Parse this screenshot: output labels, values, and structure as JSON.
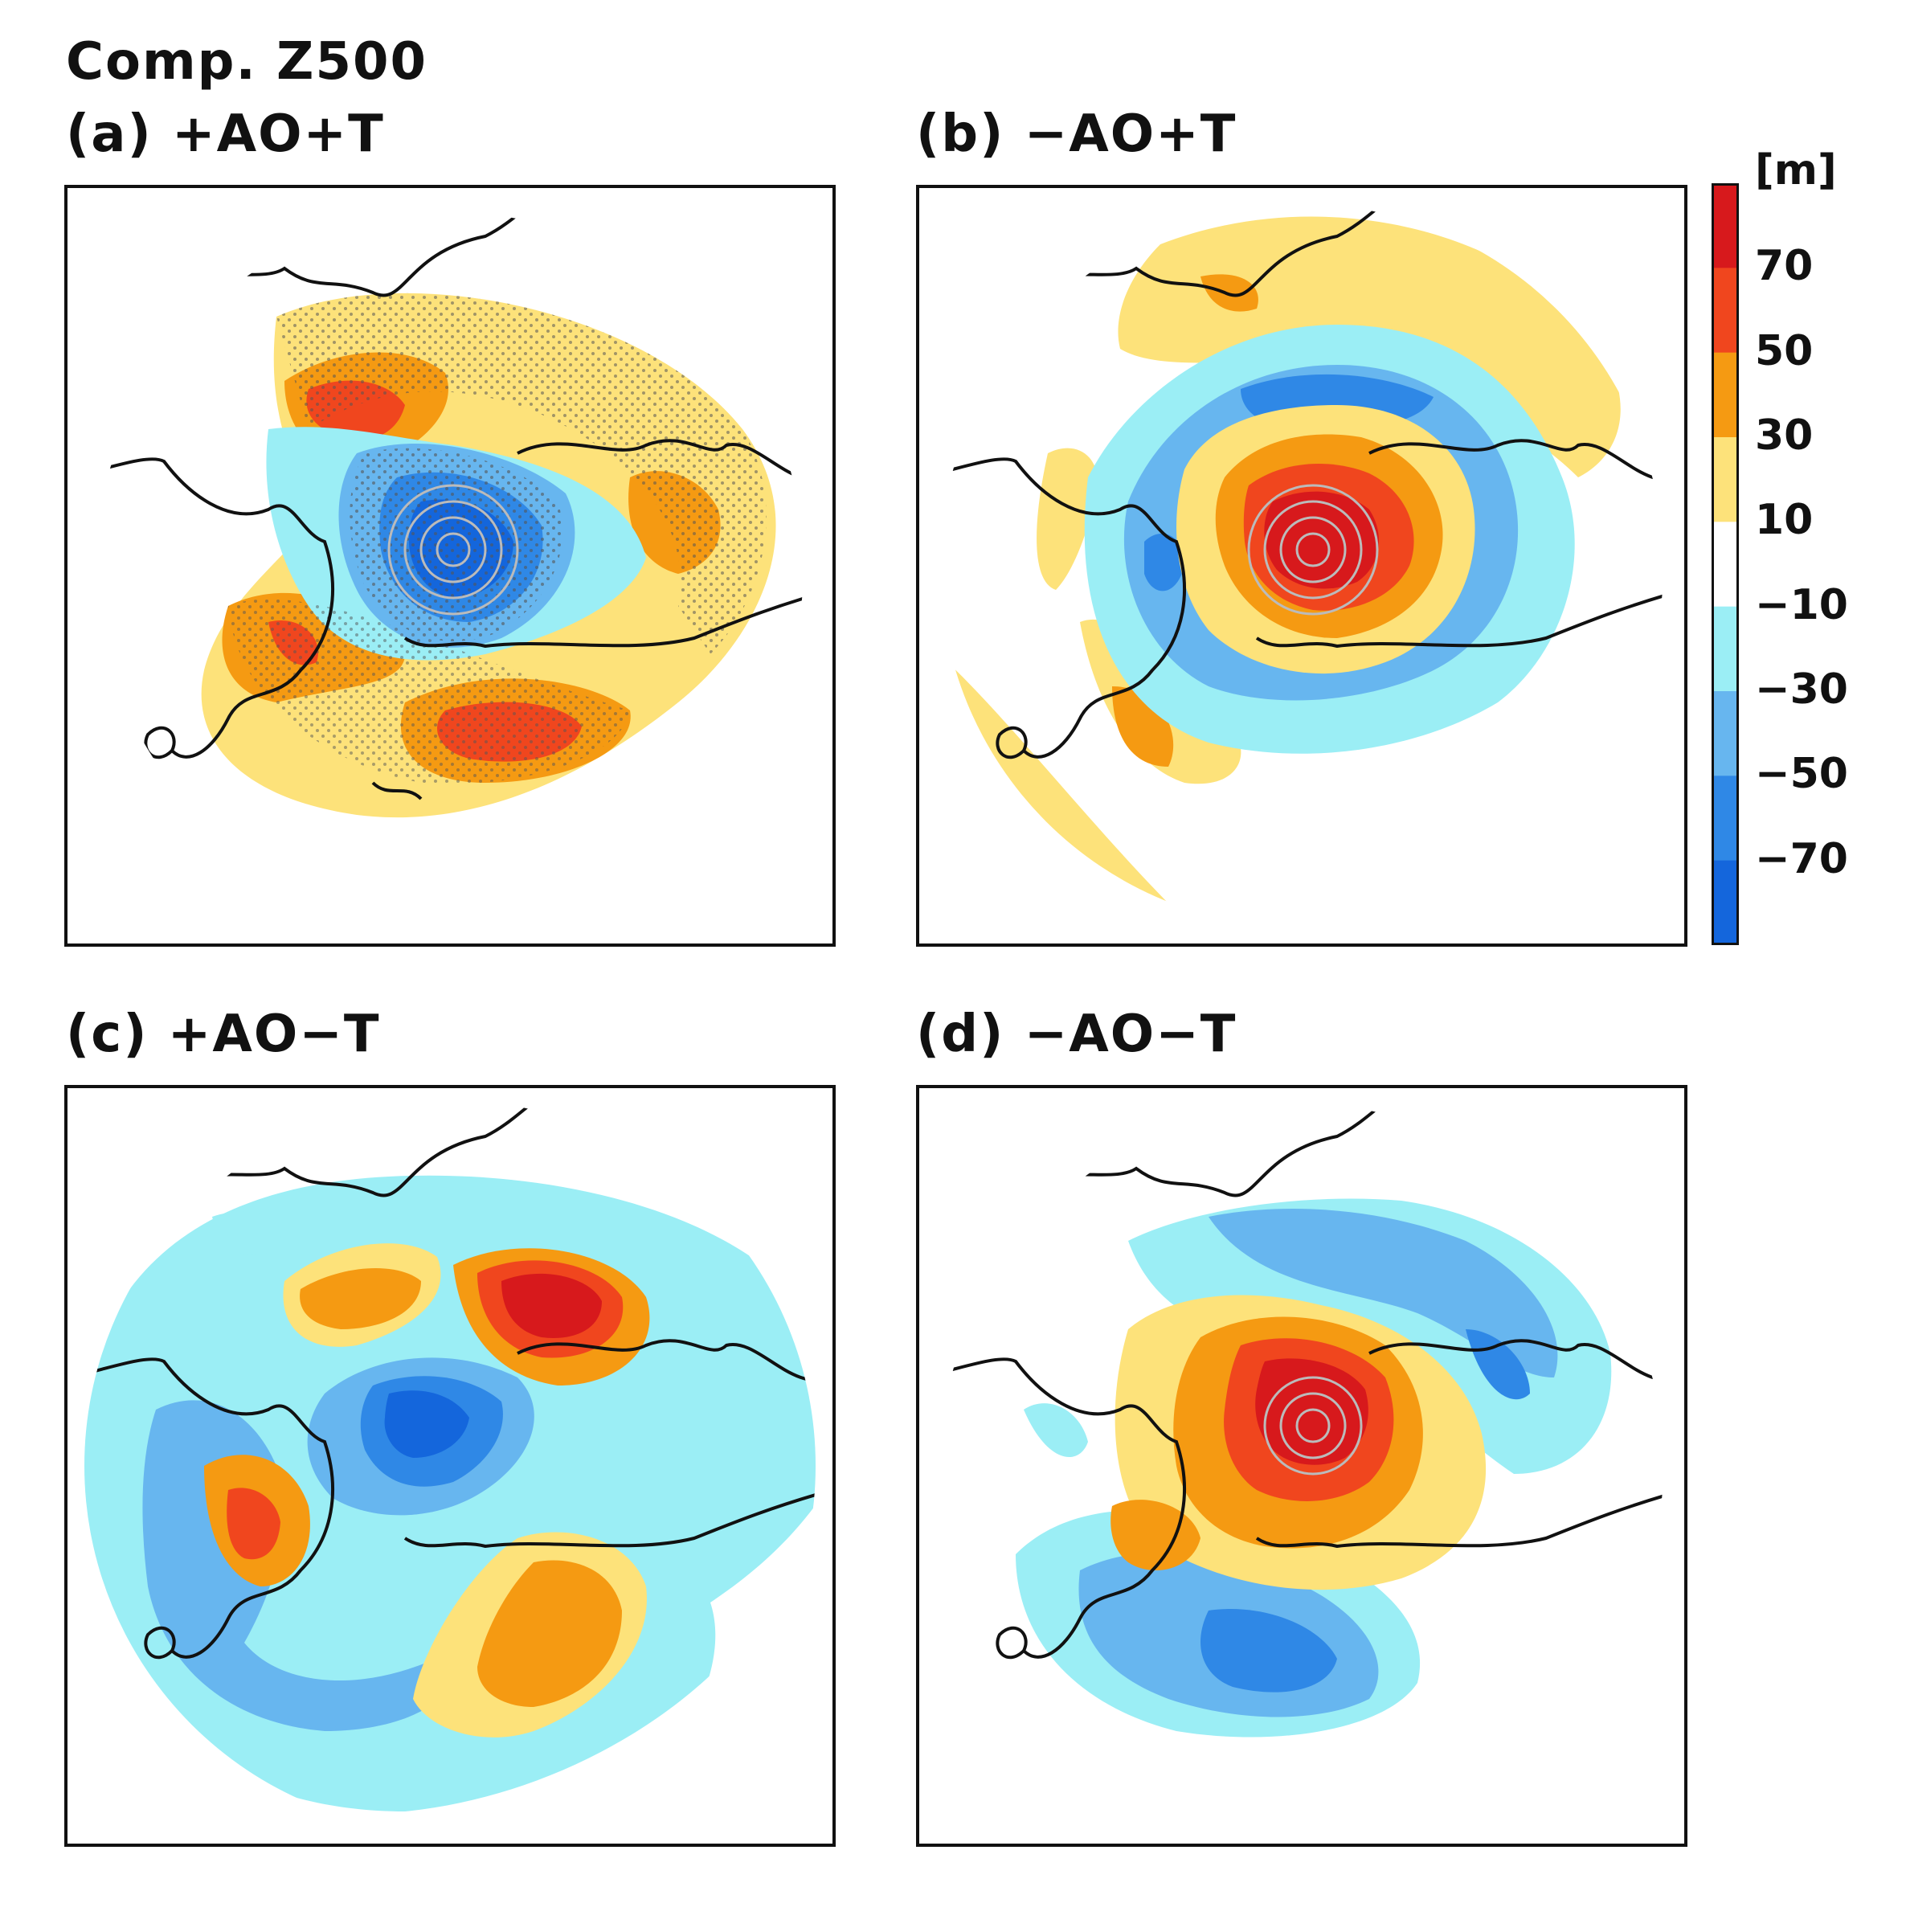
{
  "figure": {
    "title": "Comp. Z500",
    "unit": "[m]"
  },
  "colorbar": {
    "levels": [
      "70",
      "50",
      "30",
      "10",
      "−10",
      "−30",
      "−50",
      "−70"
    ],
    "colors": [
      "#d7191c",
      "#f0461e",
      "#f59a12",
      "#fde27a",
      "#ffffff",
      "#9beef5",
      "#67b6ef",
      "#2f88e6",
      "#1466dc"
    ]
  },
  "panels": [
    {
      "id": "a",
      "label": "(a)  +AO+T"
    },
    {
      "id": "b",
      "label": "(b)  −AO+T"
    },
    {
      "id": "c",
      "label": "(c)  +AO−T"
    },
    {
      "id": "d",
      "label": "(d)  −AO−T"
    }
  ]
}
